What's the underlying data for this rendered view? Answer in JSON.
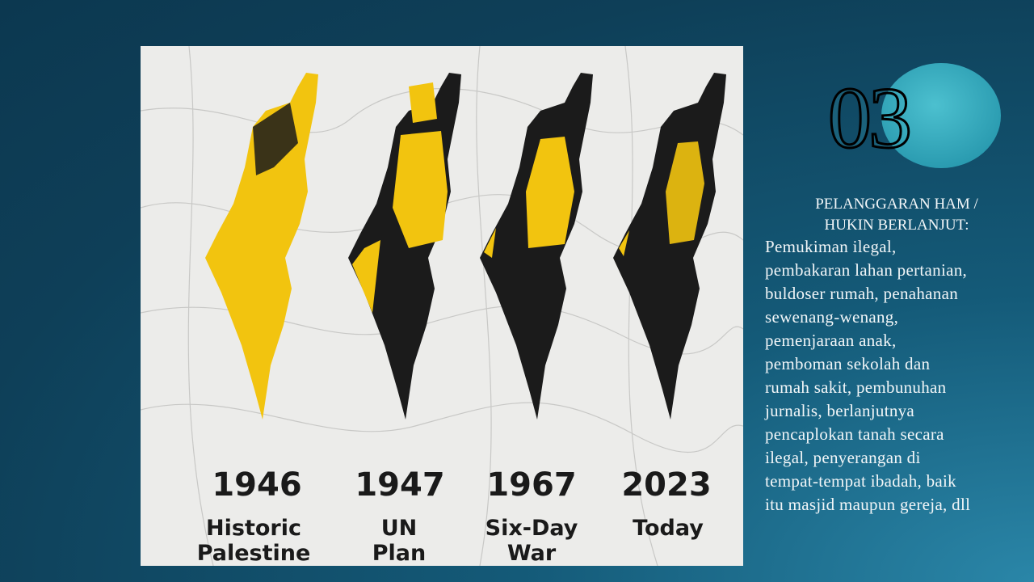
{
  "slide": {
    "number": "03",
    "heading": [
      "PELANGGARAN HAM /",
      "HUKIN BERLANJUT:"
    ],
    "body": [
      "Pemukiman ilegal,",
      "pembakaran lahan pertanian,",
      "buldoser rumah, penahanan",
      "sewenang-wenang,",
      "pemenjaraan anak,",
      "pemboman sekolah dan",
      "rumah sakit, pembunuhan",
      "jurnalis, berlanjutnya",
      "pencaplokan tanah secara",
      "ilegal, penyerangan di",
      "tempat-tempat ibadah, baik",
      "itu masjid maupun gereja, dll"
    ],
    "image": {
      "panels": [
        {
          "year": "1946",
          "label": [
            "Historic",
            "Palestine"
          ]
        },
        {
          "year": "1947",
          "label": [
            "UN",
            "Plan"
          ]
        },
        {
          "year": "1967",
          "label": [
            "Six-Day",
            "War"
          ]
        },
        {
          "year": "2023",
          "label": [
            "Today"
          ]
        }
      ]
    }
  }
}
